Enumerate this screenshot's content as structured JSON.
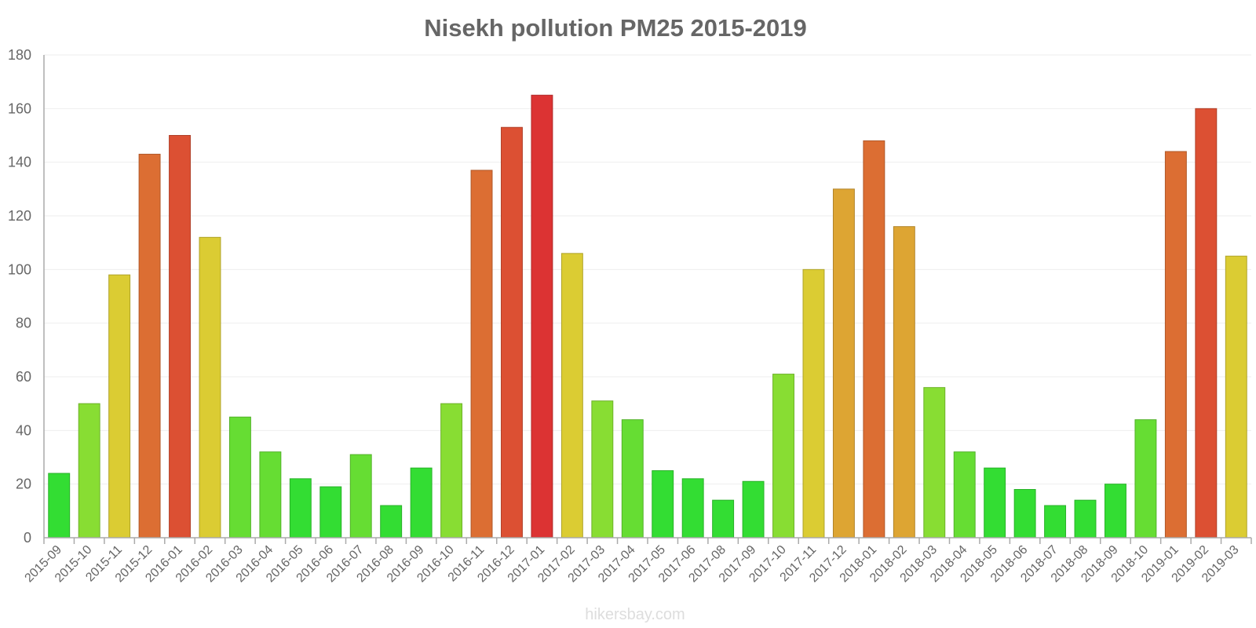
{
  "chart_data": {
    "type": "bar",
    "title": "Nisekh pollution PM25 2015-2019",
    "xlabel": "",
    "ylabel": "",
    "ylim": [
      0,
      180
    ],
    "yticks": [
      0,
      20,
      40,
      60,
      80,
      100,
      120,
      140,
      160,
      180
    ],
    "grid": true,
    "categories": [
      "2015-09",
      "2015-10",
      "2015-11",
      "2015-12",
      "2016-01",
      "2016-02",
      "2016-03",
      "2016-04",
      "2016-05",
      "2016-06",
      "2016-07",
      "2016-08",
      "2016-09",
      "2016-10",
      "2016-11",
      "2016-12",
      "2017-01",
      "2017-02",
      "2017-03",
      "2017-04",
      "2017-05",
      "2017-06",
      "2017-08",
      "2017-09",
      "2017-10",
      "2017-11",
      "2017-12",
      "2018-01",
      "2018-02",
      "2018-03",
      "2018-04",
      "2018-05",
      "2018-06",
      "2018-07",
      "2018-08",
      "2018-09",
      "2018-10",
      "2019-01",
      "2019-02",
      "2019-03"
    ],
    "values": [
      24,
      50,
      98,
      143,
      150,
      112,
      45,
      32,
      22,
      19,
      31,
      12,
      26,
      50,
      137,
      153,
      165,
      106,
      51,
      44,
      25,
      22,
      14,
      21,
      61,
      100,
      130,
      148,
      116,
      56,
      32,
      26,
      18,
      12,
      14,
      20,
      44,
      144,
      160,
      105
    ],
    "colors": {
      "green": "#33dd33",
      "light_green": "#66dd33",
      "yellow_green": "#88dd33",
      "yellow": "#dbcc33",
      "amber": "#dda533",
      "orange": "#dc6e33",
      "red_orange": "#dc5033",
      "red": "#dc3333"
    }
  },
  "footer": {
    "credit": "hikersbay.com"
  }
}
